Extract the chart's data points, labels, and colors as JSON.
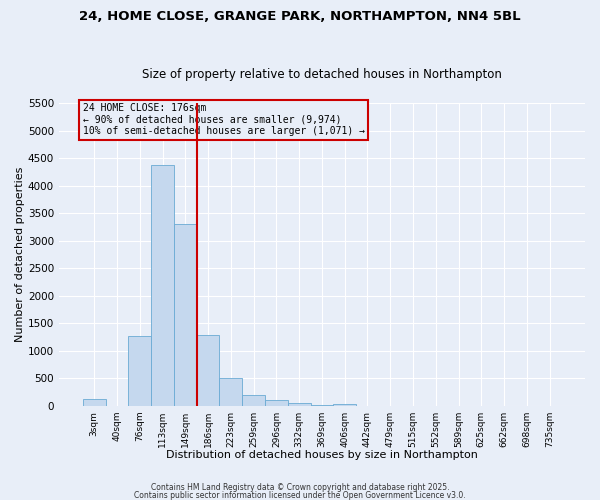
{
  "title_line1": "24, HOME CLOSE, GRANGE PARK, NORTHAMPTON, NN4 5BL",
  "title_line2": "Size of property relative to detached houses in Northampton",
  "xlabel": "Distribution of detached houses by size in Northampton",
  "ylabel": "Number of detached properties",
  "categories": [
    "3sqm",
    "40sqm",
    "76sqm",
    "113sqm",
    "149sqm",
    "186sqm",
    "223sqm",
    "259sqm",
    "296sqm",
    "332sqm",
    "369sqm",
    "406sqm",
    "442sqm",
    "479sqm",
    "515sqm",
    "552sqm",
    "589sqm",
    "625sqm",
    "662sqm",
    "698sqm",
    "735sqm"
  ],
  "values": [
    130,
    0,
    1270,
    4380,
    3300,
    1280,
    500,
    200,
    100,
    50,
    20,
    30,
    5,
    3,
    2,
    1,
    1,
    0,
    0,
    0,
    0
  ],
  "bar_color": "#c5d8ee",
  "bar_edge_color": "#6aaad4",
  "vline_x_index": 5,
  "vline_color": "#cc0000",
  "annotation_text": "24 HOME CLOSE: 176sqm\n← 90% of detached houses are smaller (9,974)\n10% of semi-detached houses are larger (1,071) →",
  "annotation_box_color": "#cc0000",
  "ylim": [
    0,
    5500
  ],
  "yticks": [
    0,
    500,
    1000,
    1500,
    2000,
    2500,
    3000,
    3500,
    4000,
    4500,
    5000,
    5500
  ],
  "background_color": "#e8eef8",
  "grid_color": "#ffffff",
  "footer_line1": "Contains HM Land Registry data © Crown copyright and database right 2025.",
  "footer_line2": "Contains public sector information licensed under the Open Government Licence v3.0."
}
